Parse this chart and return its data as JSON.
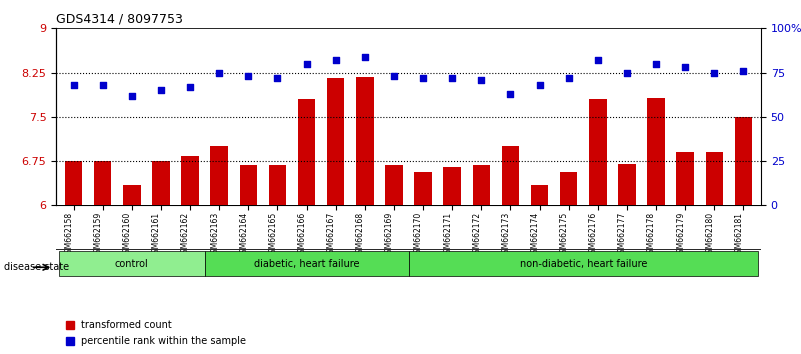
{
  "title": "GDS4314 / 8097753",
  "samples": [
    "GSM662158",
    "GSM662159",
    "GSM662160",
    "GSM662161",
    "GSM662162",
    "GSM662163",
    "GSM662164",
    "GSM662165",
    "GSM662166",
    "GSM662167",
    "GSM662168",
    "GSM662169",
    "GSM662170",
    "GSM662171",
    "GSM662172",
    "GSM662173",
    "GSM662174",
    "GSM662175",
    "GSM662176",
    "GSM662177",
    "GSM662178",
    "GSM662179",
    "GSM662180",
    "GSM662181"
  ],
  "bar_values": [
    6.75,
    6.75,
    6.35,
    6.75,
    6.83,
    7.0,
    6.68,
    6.68,
    7.8,
    8.15,
    8.18,
    6.68,
    6.57,
    6.65,
    6.68,
    7.0,
    6.35,
    6.57,
    7.8,
    6.7,
    7.82,
    6.9,
    6.9,
    7.5
  ],
  "dot_values": [
    68,
    68,
    62,
    65,
    67,
    75,
    73,
    72,
    80,
    82,
    84,
    73,
    72,
    72,
    71,
    63,
    68,
    72,
    82,
    75,
    80,
    78,
    75,
    76
  ],
  "bar_color": "#cc0000",
  "dot_color": "#0000cc",
  "ylim_left": [
    6,
    9
  ],
  "ylim_right": [
    0,
    100
  ],
  "yticks_left": [
    6,
    6.75,
    7.5,
    8.25,
    9
  ],
  "yticks_right": [
    0,
    25,
    50,
    75,
    100
  ],
  "ytick_labels_right": [
    "0",
    "25",
    "50",
    "75",
    "100%"
  ],
  "hlines": [
    6.75,
    7.5,
    8.25
  ],
  "groups": [
    {
      "label": "control",
      "start": 0,
      "end": 4,
      "color": "#90ee90"
    },
    {
      "label": "diabetic, heart failure",
      "start": 5,
      "end": 11,
      "color": "#55dd55"
    },
    {
      "label": "non-diabetic, heart failure",
      "start": 12,
      "end": 23,
      "color": "#55dd55"
    }
  ],
  "legend_items": [
    {
      "label": "transformed count",
      "color": "#cc0000",
      "marker": "s"
    },
    {
      "label": "percentile rank within the sample",
      "color": "#0000cc",
      "marker": "s"
    }
  ],
  "disease_state_label": "disease state",
  "xlabel_color": "#333333",
  "tick_label_bg": "#cccccc",
  "background_color": "#ffffff"
}
